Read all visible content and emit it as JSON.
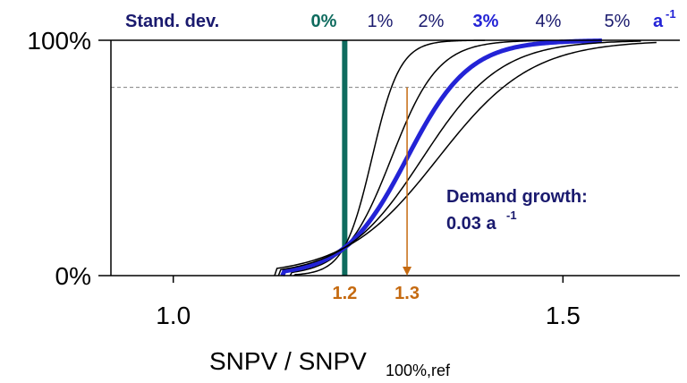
{
  "colors": {
    "navy": "#1a1a6e",
    "teal": "#0e6b5e",
    "blue": "#2323d6",
    "orange": "#c56a10",
    "black": "#000000",
    "grid": "#808080"
  },
  "chart_data": {
    "type": "line",
    "xlabel_main": "SNPV / SNPV",
    "xlabel_sub": "100%,ref",
    "xlim": [
      0.92,
      1.65
    ],
    "ylim": [
      0,
      1
    ],
    "x_ticks": [
      {
        "value": 1.0,
        "label": "1.0"
      },
      {
        "value": 1.5,
        "label": "1.5"
      }
    ],
    "y_ticks": [
      {
        "value": 0,
        "label": "0%"
      },
      {
        "value": 1,
        "label": "100%"
      }
    ],
    "reference_line_y": 0.8,
    "legend_title": "Stand. dev.",
    "legend_unit": "a",
    "legend_unit_exp": "-1",
    "series": [
      {
        "name": "0%",
        "color": "teal",
        "bold": true,
        "step_x": 1.22
      },
      {
        "name": "1%",
        "color": "black",
        "center": 1.255,
        "scale": 0.018,
        "xmin": 1.155,
        "xmax": 1.4
      },
      {
        "name": "2%",
        "color": "black",
        "center": 1.28,
        "scale": 0.03,
        "xmin": 1.15,
        "xmax": 1.5
      },
      {
        "name": "3%",
        "color": "blue",
        "bold": true,
        "center": 1.3,
        "scale": 0.04,
        "xmin": 1.14,
        "xmax": 1.55
      },
      {
        "name": "4%",
        "color": "black",
        "center": 1.32,
        "scale": 0.05,
        "xmin": 1.135,
        "xmax": 1.6
      },
      {
        "name": "5%",
        "color": "black",
        "center": 1.34,
        "scale": 0.06,
        "xmin": 1.13,
        "xmax": 1.62
      }
    ],
    "annotations": {
      "demand_line1": "Demand growth:",
      "demand_line2": "0.03 a",
      "demand_exp": "-1",
      "marker_a": {
        "x": 1.22,
        "label": "1.2"
      },
      "marker_b": {
        "x": 1.3,
        "label": "1.3"
      }
    }
  }
}
